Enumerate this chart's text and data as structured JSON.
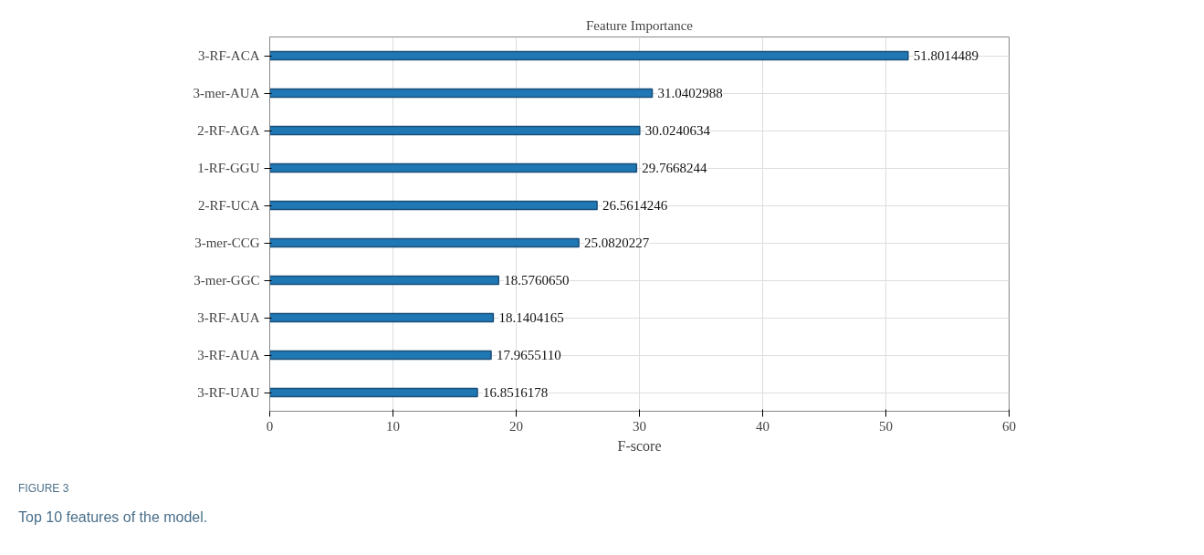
{
  "chart_data": {
    "type": "bar",
    "orientation": "horizontal",
    "title": "Feature Importance",
    "xlabel": "F-score",
    "categories": [
      "3-RF-ACA",
      "3-mer-AUA",
      "2-RF-AGA",
      "1-RF-GGU",
      "2-RF-UCA",
      "3-mer-CCG",
      "3-mer-GGC",
      "3-RF-AUA",
      "3-RF-AUA",
      "3-RF-UAU"
    ],
    "values": [
      51.8014489,
      31.0402988,
      30.0240634,
      29.7668244,
      26.5614246,
      25.0820227,
      18.576065,
      18.1404165,
      17.965511,
      16.8516178
    ],
    "value_labels": [
      "51.8014489",
      "31.0402988",
      "30.0240634",
      "29.7668244",
      "26.5614246",
      "25.0820227",
      "18.5760650",
      "18.1404165",
      "17.9655110",
      "16.8516178"
    ],
    "color": "#1f77b4",
    "xlim": [
      0,
      60
    ],
    "xticks": [
      0,
      10,
      20,
      30,
      40,
      50,
      60
    ],
    "grid": true,
    "annotations": [
      "FIGURE 3",
      "Top 10 features of the model."
    ]
  }
}
